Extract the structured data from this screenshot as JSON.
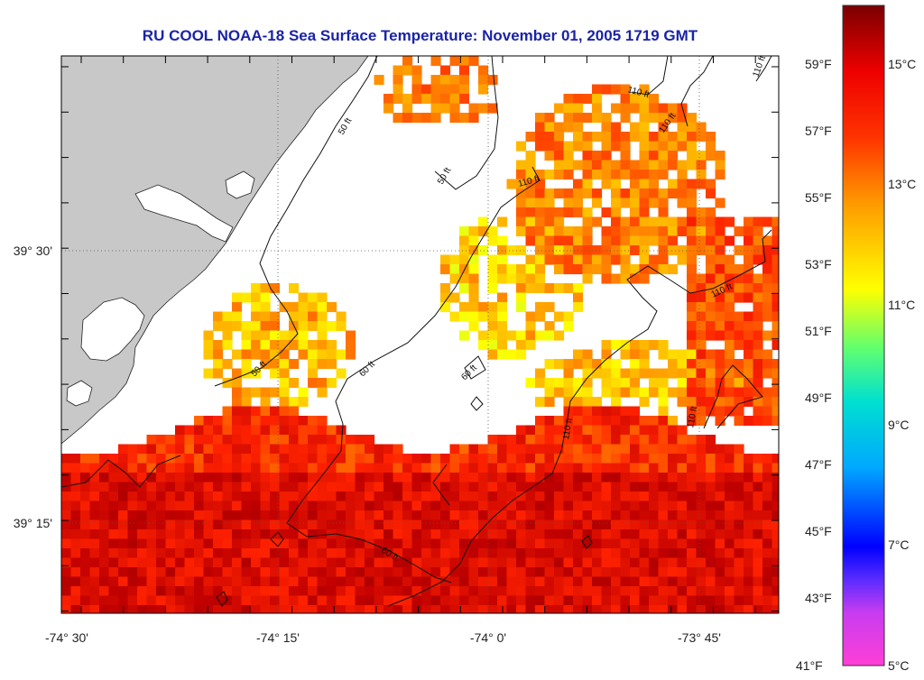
{
  "title": "RU COOL  NOAA-18  Sea Surface Temperature:  November 01, 2005 1719 GMT",
  "axes": {
    "lon_labels": [
      "-74° 30'",
      "-74° 15'",
      "-74° 0'",
      "-73° 45'"
    ],
    "lat_labels": [
      "39° 30'",
      "39° 15'"
    ]
  },
  "colorbar": {
    "fahrenheit_labels": [
      "59°F",
      "57°F",
      "55°F",
      "53°F",
      "51°F",
      "49°F",
      "47°F",
      "45°F",
      "43°F",
      "41°F"
    ],
    "celsius_labels": [
      "15°C",
      "13°C",
      "11°C",
      "9°C",
      "7°C",
      "5°C"
    ],
    "range_c": [
      5,
      16
    ],
    "colors": [
      "#ff3fd6",
      "#7b2cff",
      "#0000ff",
      "#00b4ff",
      "#00e6c8",
      "#7cff6a",
      "#ffff00",
      "#ff9a00",
      "#ff2200",
      "#c00000",
      "#7a0000"
    ]
  },
  "map": {
    "land_color": "#c8c8c8",
    "no_data_color": "#ffffff",
    "contours": [
      "50 ft",
      "50 ft",
      "50 ft",
      "60 ft",
      "60 ft",
      "60 ft",
      "110 ft",
      "110 ft",
      "110 ft",
      "110 ft",
      "110 ft",
      "110 ft",
      "110 ft"
    ]
  }
}
